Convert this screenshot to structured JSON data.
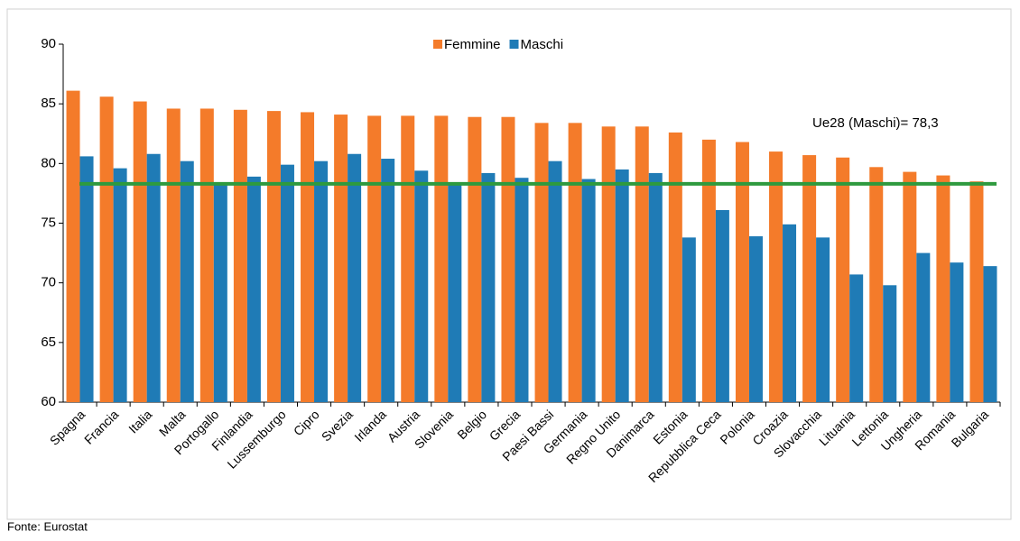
{
  "chart_data": {
    "type": "bar",
    "categories": [
      "Spagna",
      "Francia",
      "Italia",
      "Malta",
      "Portogallo",
      "Finlandia",
      "Lussemburgo",
      "Cipro",
      "Svezia",
      "Irlanda",
      "Austria",
      "Slovenia",
      "Belgio",
      "Grecia",
      "Paesi Bassi",
      "Germania",
      "Regno Unito",
      "Danimarca",
      "Estonia",
      "Repubblica Ceca",
      "Polonia",
      "Croazia",
      "Slovacchia",
      "Lituania",
      "Lettonia",
      "Ungheria",
      "Romania",
      "Bulgaria"
    ],
    "series": [
      {
        "name": "Femmine",
        "color": "#f47b2a",
        "values": [
          86.1,
          85.6,
          85.2,
          84.6,
          84.6,
          84.5,
          84.4,
          84.3,
          84.1,
          84.0,
          84.0,
          84.0,
          83.9,
          83.9,
          83.4,
          83.4,
          83.1,
          83.1,
          82.6,
          82.0,
          81.8,
          81.0,
          80.7,
          80.5,
          79.7,
          79.3,
          79.0,
          78.5
        ]
      },
      {
        "name": "Maschi",
        "color": "#1f7bb6",
        "values": [
          80.6,
          79.6,
          80.8,
          80.2,
          78.2,
          78.9,
          79.9,
          80.2,
          80.8,
          80.4,
          79.4,
          78.2,
          79.2,
          78.8,
          80.2,
          78.7,
          79.5,
          79.2,
          73.8,
          76.1,
          73.9,
          74.9,
          73.8,
          70.7,
          69.8,
          72.5,
          71.7,
          71.4
        ]
      }
    ],
    "ylim": [
      60,
      90
    ],
    "yticks": [
      60,
      65,
      70,
      75,
      80,
      85,
      90
    ],
    "reference_line": {
      "value": 78.3,
      "label": "Ue28 (Maschi)= 78,3",
      "color": "#2e9a3e"
    },
    "legend": "top",
    "source": "Fonte: Eurostat"
  }
}
